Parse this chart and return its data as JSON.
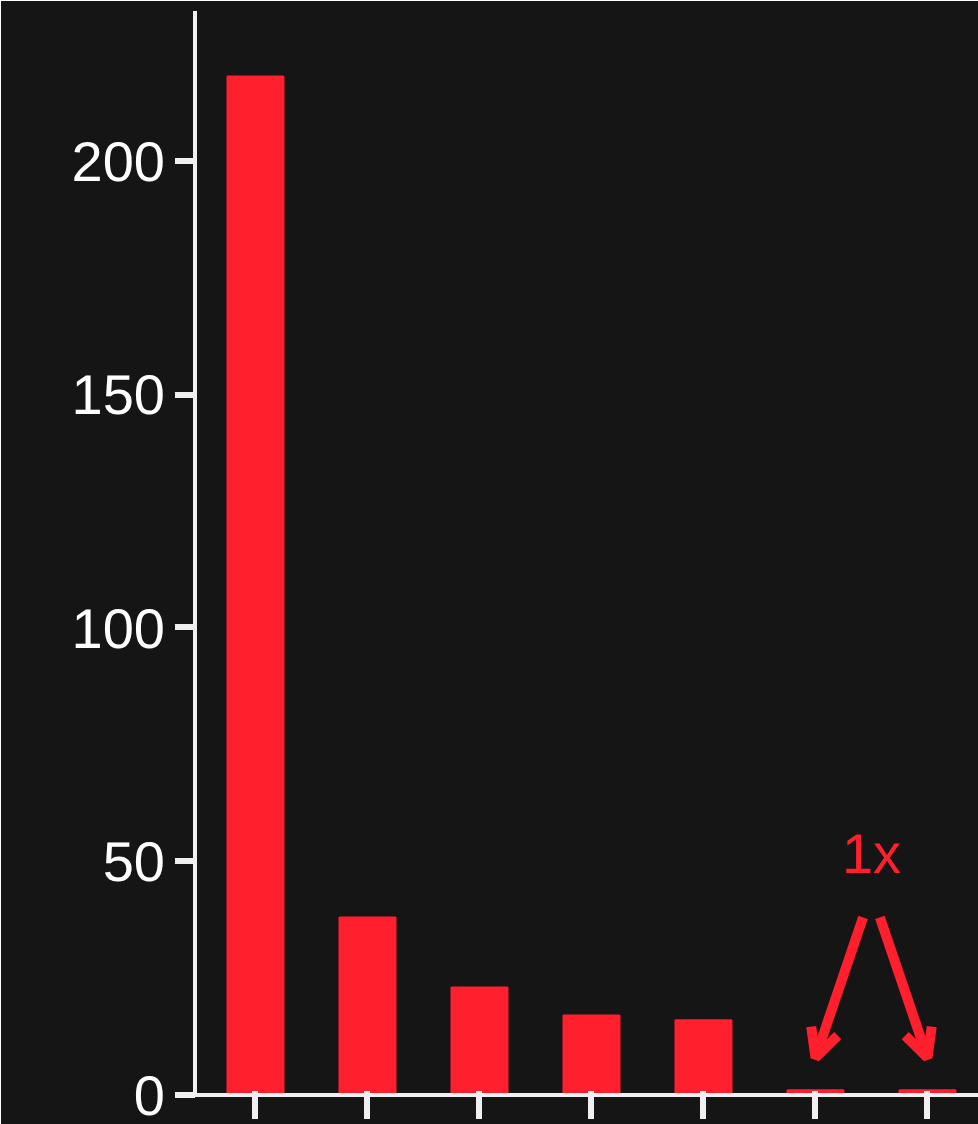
{
  "chart_data": {
    "type": "bar",
    "categories": [
      null,
      null,
      null,
      null,
      null,
      null,
      null
    ],
    "values": [
      218,
      38,
      23,
      17,
      16,
      1,
      1
    ],
    "color": "#ff1f2d",
    "ylim": [
      0,
      232
    ],
    "yticks": [
      0,
      50,
      100,
      150,
      200
    ],
    "grid": false,
    "annotations": [
      "1x"
    ]
  }
}
